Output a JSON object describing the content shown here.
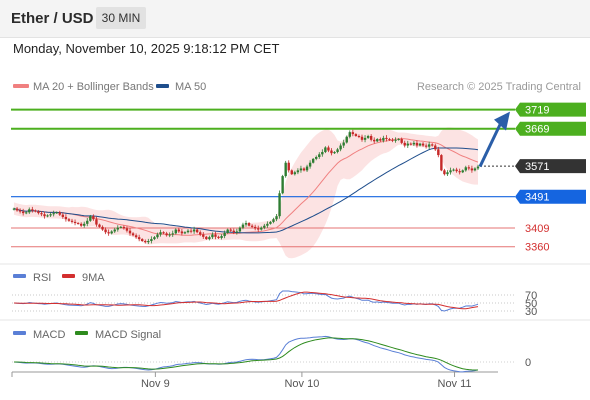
{
  "header": {
    "pair": "Ether / USD",
    "interval": "30 MIN"
  },
  "timestamp": "Monday, November 10, 2025 9:18:12 PM CET",
  "credit": "Research © 2025 Trading Central",
  "colors": {
    "bollinger": "#f08080",
    "ma50": "#1f4e8c",
    "resistance": "#4caf1f",
    "pivot": "#1565e0",
    "support": "#e57373",
    "last": "#333333",
    "candle_up": "#2e7d32",
    "candle_down": "#c62828",
    "rsi": "#5a7fd6",
    "rsi_ma": "#d32f2f",
    "macd": "#5a7fd6",
    "macd_signal": "#2e8b1e"
  },
  "chart_data": {
    "type": "candlestick",
    "legend": [
      {
        "name": "MA 20 + Bollinger Bands",
        "color": "#f08080"
      },
      {
        "name": "MA 50",
        "color": "#1f4e8c"
      }
    ],
    "price_range": [
      3320,
      3760
    ],
    "levels": [
      {
        "value": 3719,
        "label": "3719",
        "kind": "resistance"
      },
      {
        "value": 3669,
        "label": "3669",
        "kind": "resistance"
      },
      {
        "value": 3571,
        "label": "3571",
        "kind": "last"
      },
      {
        "value": 3491,
        "label": "3491",
        "kind": "pivot"
      },
      {
        "value": 3409,
        "label": "3409",
        "kind": "support"
      },
      {
        "value": 3360,
        "label": "3360",
        "kind": "support"
      }
    ],
    "x_ticks": [
      "Nov 9",
      "Nov 10",
      "Nov 11"
    ],
    "closes": [
      3460,
      3455,
      3452,
      3448,
      3450,
      3458,
      3455,
      3452,
      3448,
      3445,
      3440,
      3442,
      3445,
      3448,
      3450,
      3444,
      3438,
      3432,
      3428,
      3425,
      3422,
      3420,
      3415,
      3420,
      3428,
      3440,
      3432,
      3418,
      3412,
      3405,
      3398,
      3395,
      3400,
      3405,
      3410,
      3412,
      3408,
      3402,
      3395,
      3390,
      3385,
      3380,
      3375,
      3372,
      3375,
      3380,
      3385,
      3392,
      3398,
      3395,
      3390,
      3392,
      3395,
      3405,
      3400,
      3395,
      3398,
      3402,
      3400,
      3405,
      3398,
      3392,
      3386,
      3380,
      3385,
      3392,
      3386,
      3383,
      3388,
      3396,
      3405,
      3402,
      3398,
      3400,
      3410,
      3418,
      3422,
      3415,
      3412,
      3408,
      3405,
      3410,
      3415,
      3420,
      3425,
      3432,
      3440,
      3500,
      3545,
      3580,
      3560,
      3550,
      3555,
      3560,
      3565,
      3560,
      3570,
      3580,
      3590,
      3595,
      3602,
      3608,
      3620,
      3612,
      3605,
      3608,
      3615,
      3625,
      3633,
      3648,
      3660,
      3655,
      3650,
      3648,
      3640,
      3645,
      3650,
      3640,
      3636,
      3642,
      3638,
      3645,
      3642,
      3640,
      3638,
      3640,
      3642,
      3632,
      3625,
      3630,
      3628,
      3632,
      3625,
      3630,
      3625,
      3622,
      3628,
      3625,
      3615,
      3600,
      3560,
      3550,
      3555,
      3560,
      3562,
      3558,
      3555,
      3560,
      3568,
      3565,
      3560,
      3565,
      3570
    ],
    "rsi": {
      "name": "RSI",
      "ma_name": "9MA",
      "levels": [
        70,
        50,
        30
      ],
      "range": [
        0,
        100
      ]
    },
    "macd": {
      "name": "MACD",
      "signal_name": "MACD Signal",
      "zero_label": "0"
    }
  }
}
